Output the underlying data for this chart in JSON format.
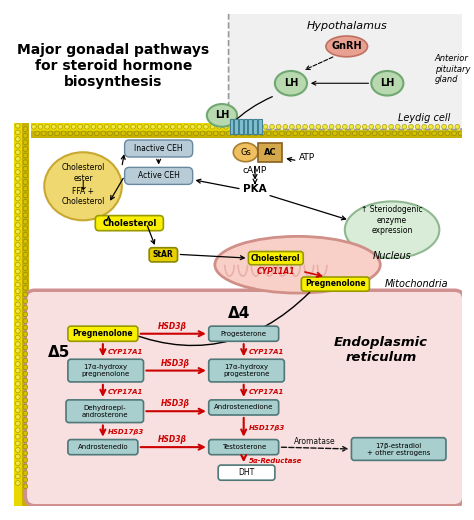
{
  "title": "Major gonadal pathways\nfor steroid hormone\nbiosynthesis",
  "bg_color": "#ffffff",
  "membrane_color1": "#e8d800",
  "membrane_color2": "#c8b800",
  "membrane_dot_color": "#a09000",
  "leydig_label": "Leydig cell",
  "hypothalamus_label": "Hypothalamus",
  "anterior_pituitary_label": "Anterior\npituitary\ngland",
  "gnrh_color": "#e8a090",
  "gnrh_edge": "#c07060",
  "lh_color": "#b8d8b0",
  "lh_edge": "#70a870",
  "hypo_bg": "#f0f0f0",
  "hypo_edge": "#999999",
  "nucleus_color": "#d8ecd8",
  "nucleus_edge": "#90b890",
  "mito_color": "#f8d0c8",
  "mito_edge": "#d09088",
  "mito_inner": "#e8b0a8",
  "er_color": "#f8e0e0",
  "er_edge": "#d09090",
  "er_label": "Endoplasmic\nreticulum",
  "nucleus_label": "Nucleus",
  "mito_label": "Mitochondria",
  "yellow_box_color": "#f8f000",
  "yellow_box_edge": "#999900",
  "teal_box_color": "#a8cece",
  "teal_box_edge": "#507878",
  "white_box_color": "#ffffff",
  "arrow_red": "#cc0000",
  "arrow_black": "#111111",
  "cholesterol_ester_color": "#f0d870",
  "cholesterol_ester_edge": "#c8a830",
  "inactive_ceh_color": "#b8ccd8",
  "inactive_ceh_edge": "#6888a0",
  "active_ceh_color": "#b8ccd8",
  "active_ceh_edge": "#6888a0",
  "gs_color": "#f0c060",
  "gs_edge": "#a88030",
  "ac_color": "#d4a84a",
  "ac_edge": "#886020",
  "star_color": "#e8d000",
  "star_edge": "#888800",
  "steriodogenic_color": "#d8ecd8",
  "steriodogenic_edge": "#90b890",
  "receptor_color": "#80c0d0",
  "receptor_edge": "#408090"
}
